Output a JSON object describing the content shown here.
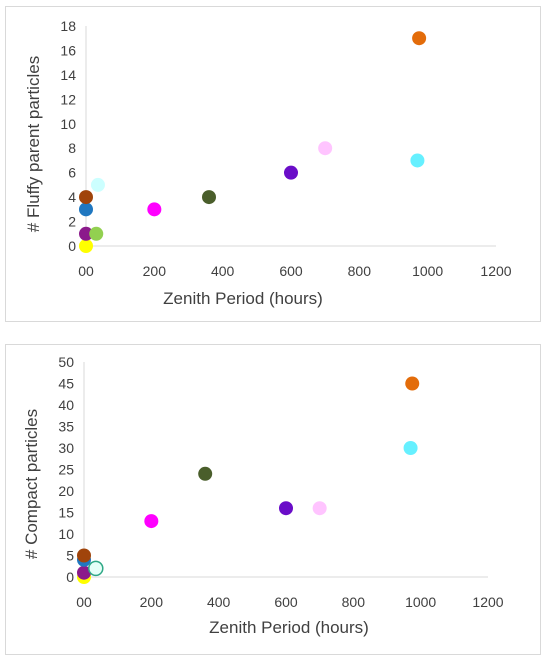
{
  "chart_data": [
    {
      "type": "scatter",
      "xlabel": "Zenith Period (hours)",
      "ylabel": "# Fluffy parent particles",
      "xlim": [
        0,
        1200
      ],
      "ylim": [
        0,
        18
      ],
      "xticks": [
        "00",
        "200",
        "400",
        "600",
        "800",
        "1000",
        "1200"
      ],
      "yticks": [
        "0",
        "2",
        "4",
        "6",
        "8",
        "10",
        "12",
        "14",
        "16",
        "18"
      ],
      "grid": false,
      "points": [
        {
          "x": 0,
          "y": 0,
          "color": "#ffff00"
        },
        {
          "x": 0,
          "y": 1,
          "color": "#8b1a8b"
        },
        {
          "x": 0,
          "y": 3,
          "color": "#1f77c0"
        },
        {
          "x": 0,
          "y": 4,
          "color": "#a0440b"
        },
        {
          "x": 30,
          "y": 1,
          "color": "#92d050"
        },
        {
          "x": 35,
          "y": 5,
          "color": "#ccffff"
        },
        {
          "x": 200,
          "y": 3,
          "color": "#ff00ff"
        },
        {
          "x": 360,
          "y": 4,
          "color": "#4a5e2b"
        },
        {
          "x": 600,
          "y": 6,
          "color": "#6a0dc8"
        },
        {
          "x": 700,
          "y": 8,
          "color": "#ffc4ff"
        },
        {
          "x": 970,
          "y": 7,
          "color": "#66f0ff"
        },
        {
          "x": 975,
          "y": 17,
          "color": "#e36c0a"
        }
      ]
    },
    {
      "type": "scatter",
      "xlabel": "Zenith Period (hours)",
      "ylabel": "# Compact particles",
      "xlim": [
        0,
        1200
      ],
      "ylim": [
        0,
        50
      ],
      "xticks": [
        "00",
        "200",
        "400",
        "600",
        "800",
        "1000",
        "1200"
      ],
      "yticks": [
        "0",
        "5",
        "10",
        "15",
        "20",
        "25",
        "30",
        "35",
        "40",
        "45",
        "50"
      ],
      "grid": false,
      "points": [
        {
          "x": 0,
          "y": 0,
          "color": "#ffff00"
        },
        {
          "x": 0,
          "y": 1,
          "color": "#8b1a8b"
        },
        {
          "x": 0,
          "y": 4,
          "color": "#1f77c0"
        },
        {
          "x": 0,
          "y": 5,
          "color": "#a0440b"
        },
        {
          "x": 35,
          "y": 2,
          "color": "#e6fff8",
          "stroke": "#2fa886"
        },
        {
          "x": 200,
          "y": 13,
          "color": "#ff00ff"
        },
        {
          "x": 360,
          "y": 24,
          "color": "#4a5e2b"
        },
        {
          "x": 600,
          "y": 16,
          "color": "#6a0dc8"
        },
        {
          "x": 700,
          "y": 16,
          "color": "#ffc4ff"
        },
        {
          "x": 970,
          "y": 30,
          "color": "#66f0ff"
        },
        {
          "x": 975,
          "y": 45,
          "color": "#e36c0a"
        }
      ]
    }
  ]
}
